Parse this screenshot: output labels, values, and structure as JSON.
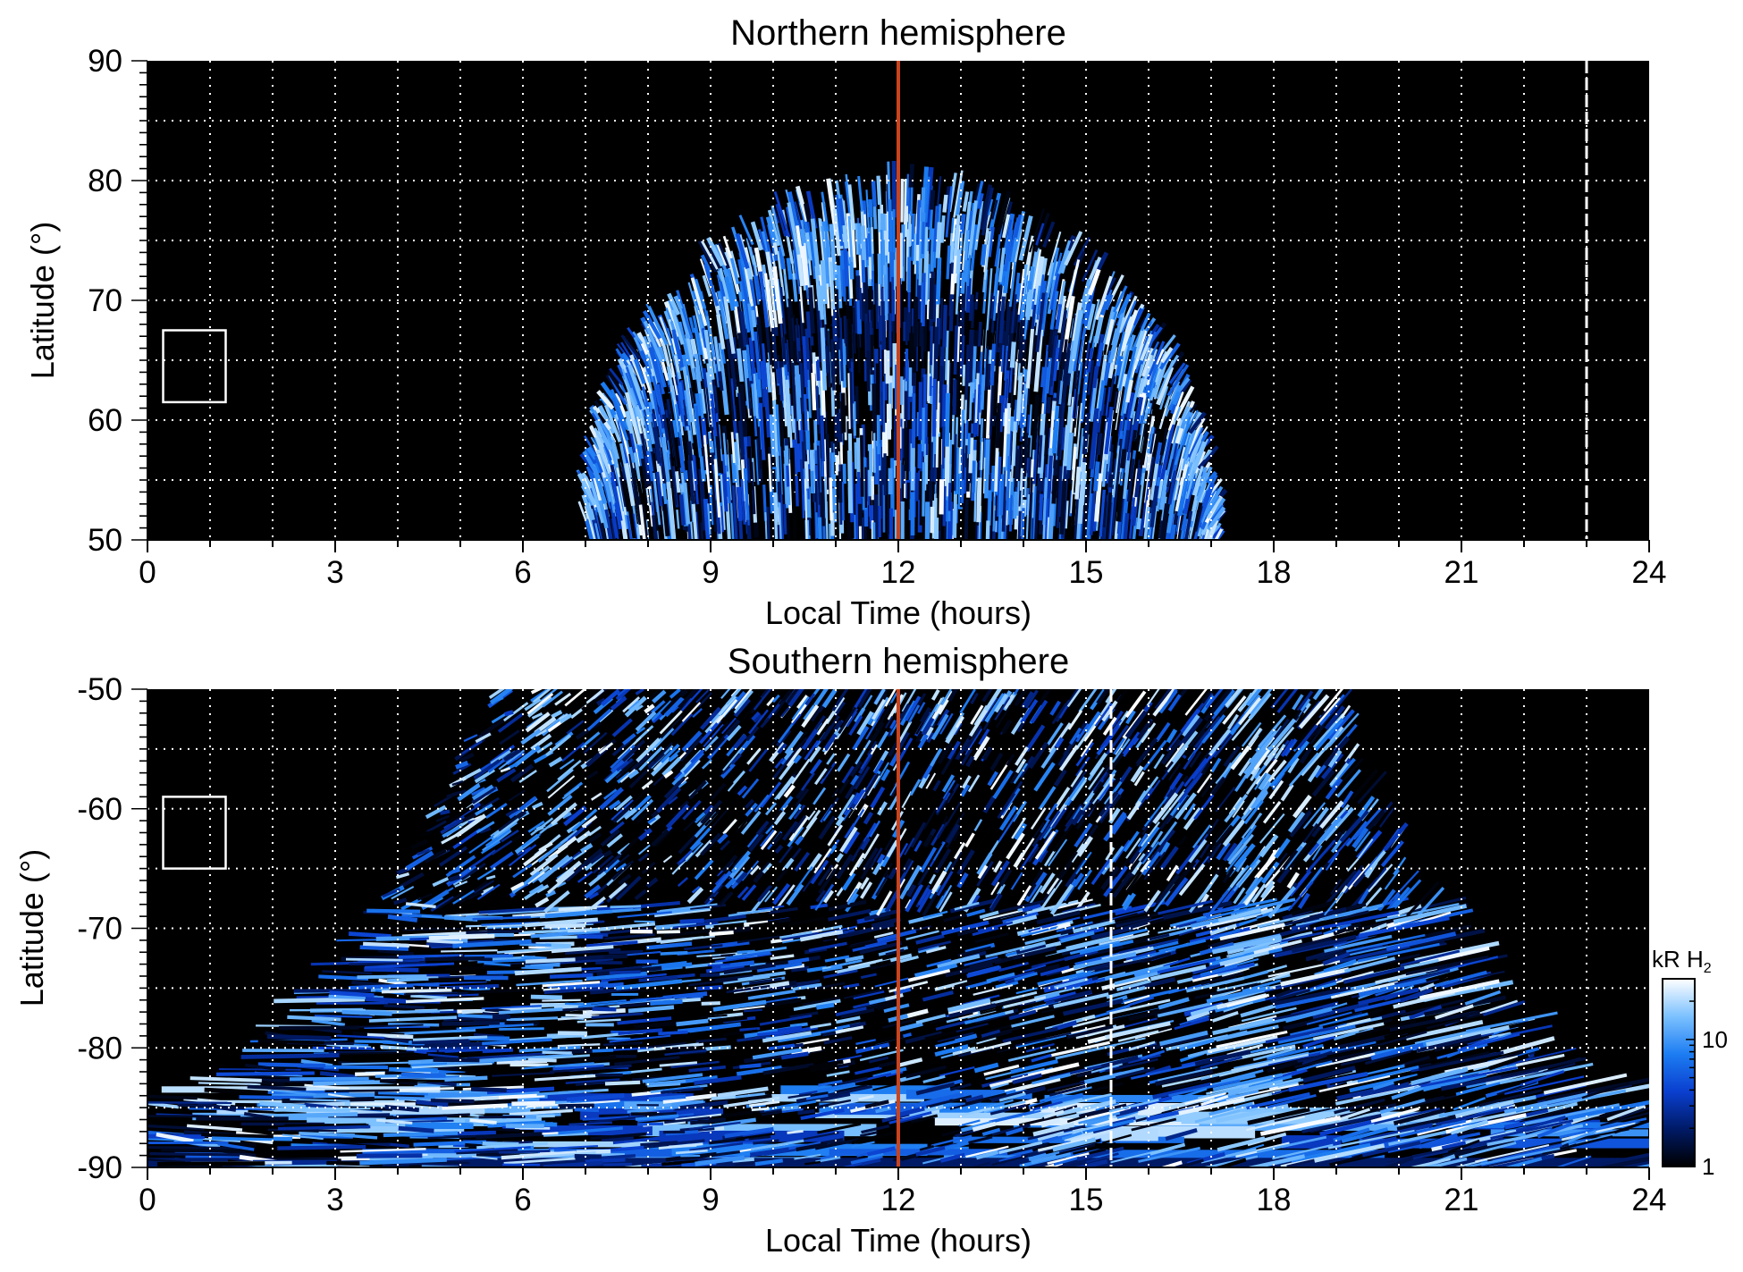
{
  "chart_data": [
    {
      "type": "heatmap",
      "title": "Northern hemisphere",
      "xlabel": "Local Time (hours)",
      "ylabel": "Latitude (°)",
      "xlim": [
        0,
        24
      ],
      "ylim": [
        50,
        90
      ],
      "xticks": [
        "0",
        "3",
        "6",
        "9",
        "12",
        "15",
        "18",
        "21",
        "24"
      ],
      "yticks": [
        "50",
        "60",
        "70",
        "80",
        "90"
      ],
      "grid": true,
      "background": "#000000",
      "reference_lines": [
        {
          "x": 12,
          "color": "#c8441e",
          "style": "solid"
        },
        {
          "x": 23,
          "color": "#ffffff",
          "style": "dashed"
        }
      ],
      "box": {
        "x0": 0.25,
        "x1": 1.25,
        "y0": 61.5,
        "y1": 67.5
      },
      "emission": {
        "shape": "dome",
        "lt_range": [
          7.0,
          17.2
        ],
        "center_lt": 12,
        "max_lat": 79.5,
        "auroral_oval": {
          "center_lat": 73,
          "width_deg": 7
        },
        "dark_ring_lat": 67.5,
        "unit": "kR"
      }
    },
    {
      "type": "heatmap",
      "title": "Southern hemisphere",
      "xlabel": "Local Time (hours)",
      "ylabel": "Latitude (°)",
      "xlim": [
        0,
        24
      ],
      "ylim": [
        -90,
        -50
      ],
      "xticks": [
        "0",
        "3",
        "6",
        "9",
        "12",
        "15",
        "18",
        "21",
        "24"
      ],
      "yticks": [
        "-90",
        "-80",
        "-70",
        "-60",
        "-50"
      ],
      "grid": true,
      "background": "#000000",
      "reference_lines": [
        {
          "x": 12,
          "color": "#c8441e",
          "style": "solid"
        },
        {
          "x": 15.4,
          "color": "#ffffff",
          "style": "dashed"
        }
      ],
      "box": {
        "x0": 0.25,
        "x1": 1.25,
        "y0": -65,
        "y1": -59
      },
      "emission": {
        "shape": "funnel",
        "vertical_bands_lt": [
          6.4,
          17.7
        ],
        "edge_lt_at_lat_-50": [
          5.5,
          19.0
        ],
        "edge_lt_at_lat_-84": [
          0.0,
          24.0
        ],
        "polar_cap_lat": -84,
        "unit": "kR"
      }
    }
  ],
  "colorbar": {
    "label": "kR H₂",
    "label_main": "kR H",
    "label_sub": "2",
    "scale": "log",
    "range": [
      1,
      30
    ],
    "ticks": [
      "1",
      "10"
    ],
    "colors": [
      "#000000",
      "#001a66",
      "#0a3fcf",
      "#1d7df2",
      "#7cc1ff",
      "#ffffff"
    ]
  }
}
